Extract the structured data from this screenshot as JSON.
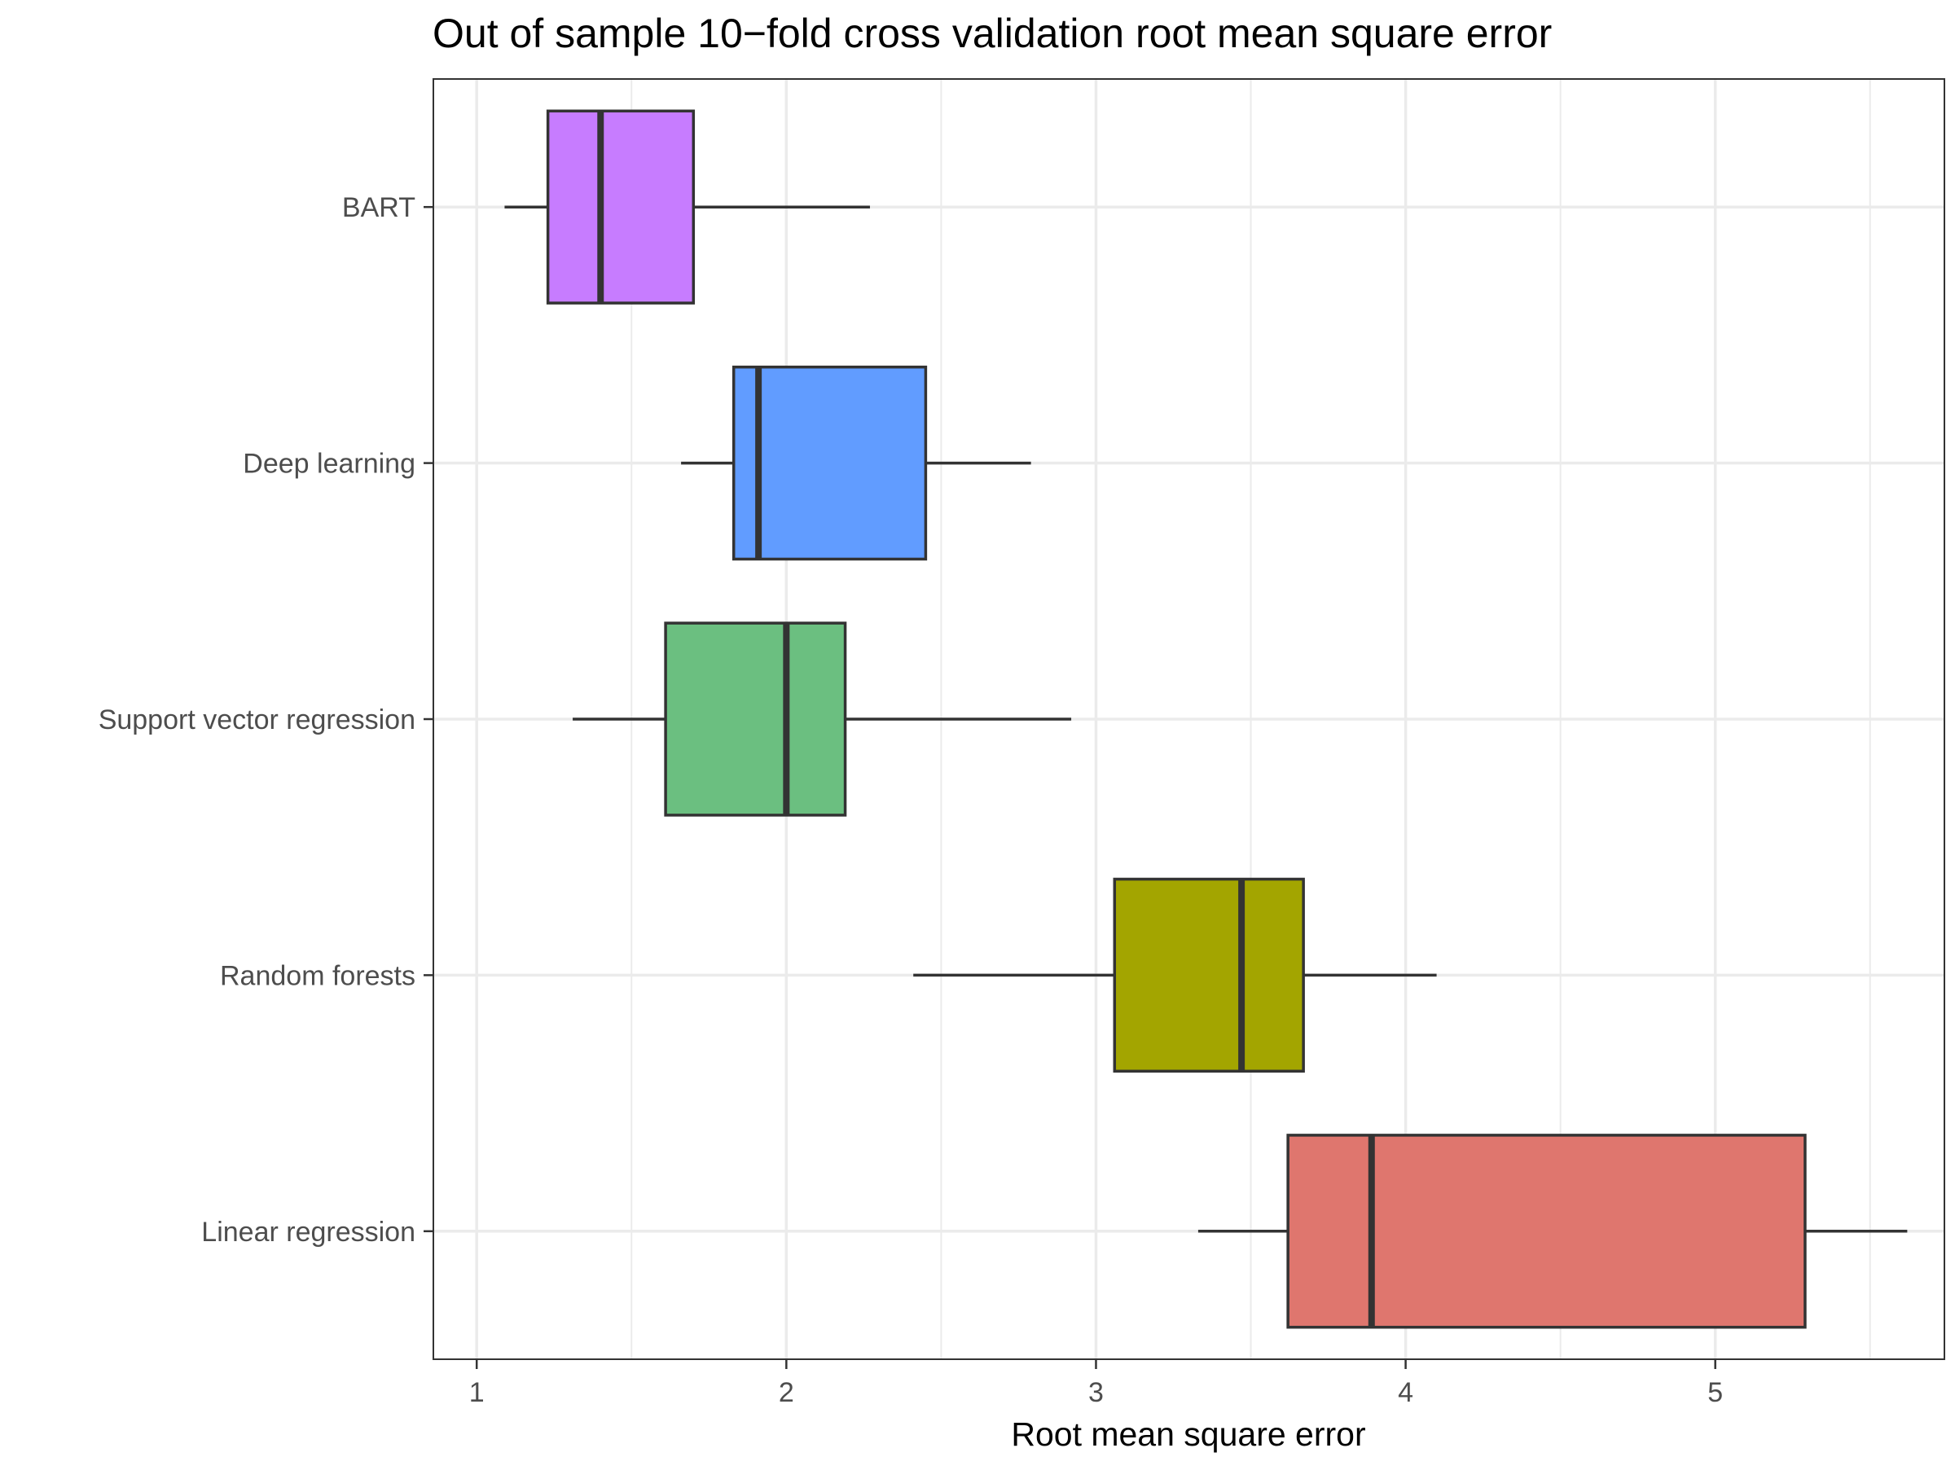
{
  "chart_data": {
    "type": "boxplot",
    "orientation": "horizontal",
    "title": "Out of sample 10−fold cross validation root mean square error",
    "xlabel": "Root mean square error",
    "ylabel": "",
    "xlim": [
      0.86,
      5.74
    ],
    "x_ticks": [
      "1",
      "2",
      "3",
      "4",
      "5"
    ],
    "x_tick_values": [
      1,
      2,
      3,
      4,
      5
    ],
    "grid": true,
    "legend": "none",
    "categories": [
      "BART",
      "Deep learning",
      "Support vector regression",
      "Random forests",
      "Linear regression"
    ],
    "boxes": [
      {
        "category": "BART",
        "whisker_low": 1.09,
        "q1": 1.23,
        "median": 1.4,
        "q3": 1.7,
        "whisker_high": 2.27,
        "color": "#C77CFF"
      },
      {
        "category": "Deep learning",
        "whisker_low": 1.66,
        "q1": 1.83,
        "median": 1.91,
        "q3": 2.45,
        "whisker_high": 2.79,
        "color": "#619CFF"
      },
      {
        "category": "Support vector regression",
        "whisker_low": 1.31,
        "q1": 1.61,
        "median": 2.0,
        "q3": 2.19,
        "whisker_high": 2.92,
        "color": "#6BBF80"
      },
      {
        "category": "Random forests",
        "whisker_low": 2.41,
        "q1": 3.06,
        "median": 3.47,
        "q3": 3.67,
        "whisker_high": 4.1,
        "color": "#A3A500"
      },
      {
        "category": "Linear regression",
        "whisker_low": 3.33,
        "q1": 3.62,
        "median": 3.89,
        "q3": 5.29,
        "whisker_high": 5.62,
        "color": "#DF766E"
      }
    ]
  }
}
